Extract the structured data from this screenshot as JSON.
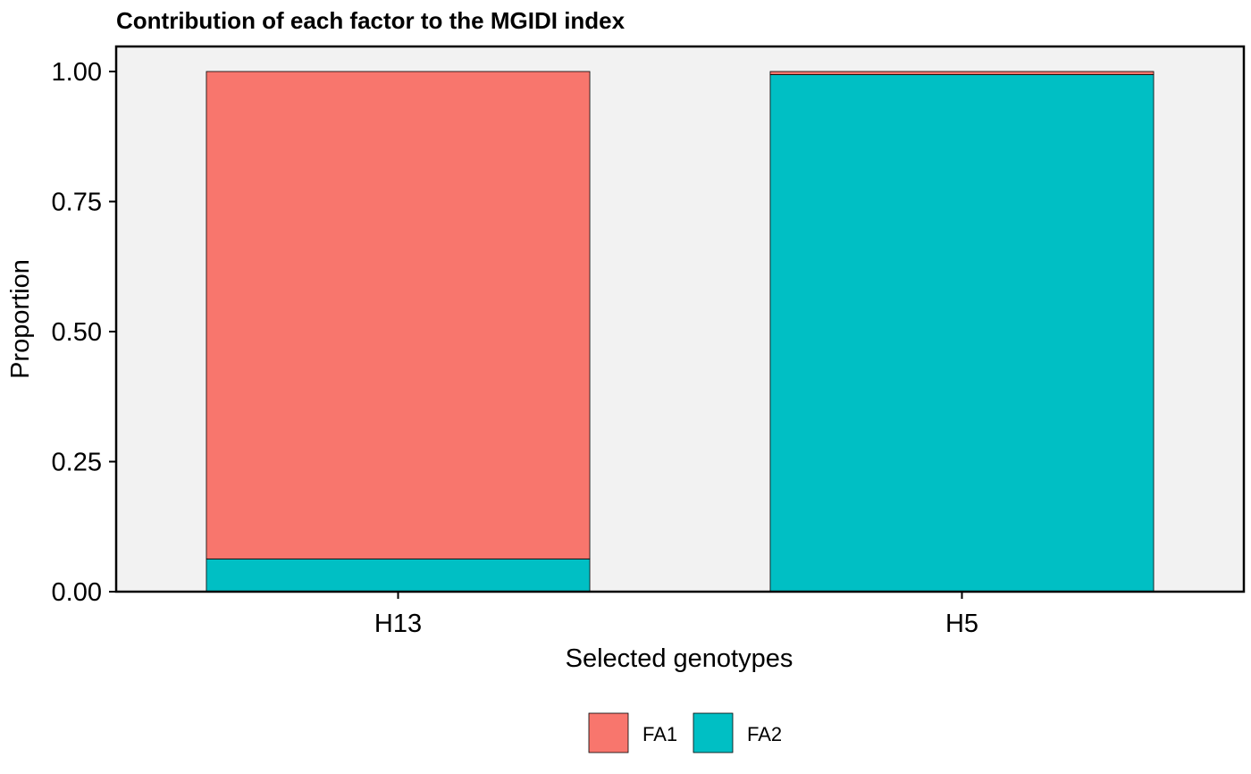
{
  "chart_data": {
    "type": "bar",
    "stacked": true,
    "title": "Contribution of each factor to the MGIDI index",
    "xlabel": "Selected genotypes",
    "ylabel": "Proportion",
    "categories": [
      "H13",
      "H5"
    ],
    "series": [
      {
        "name": "FA1",
        "color": "#F8766D",
        "values": [
          0.937,
          0.006
        ]
      },
      {
        "name": "FA2",
        "color": "#00BFC4",
        "values": [
          0.063,
          0.994
        ]
      }
    ],
    "ylim": [
      0,
      1
    ],
    "yticks": [
      "0.00",
      "0.25",
      "0.50",
      "0.75",
      "1.00"
    ],
    "legend": "bottom",
    "panel_background": "#F2F2F2",
    "grid": false
  }
}
